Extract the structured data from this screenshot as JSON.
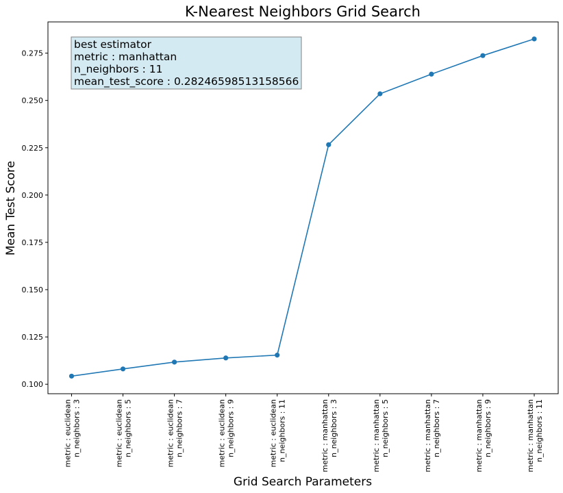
{
  "chart_data": {
    "type": "line",
    "title": "K-Nearest Neighbors Grid Search",
    "xlabel": "Grid Search Parameters",
    "ylabel": "Mean Test Score",
    "categories": [
      [
        "metric : euclidean",
        "n_neighbors : 3"
      ],
      [
        "metric : euclidean",
        "n_neighbors : 5"
      ],
      [
        "metric : euclidean",
        "n_neighbors : 7"
      ],
      [
        "metric : euclidean",
        "n_neighbors : 9"
      ],
      [
        "metric : euclidean",
        "n_neighbors : 11"
      ],
      [
        "metric : manhattan",
        "n_neighbors : 3"
      ],
      [
        "metric : manhattan",
        "n_neighbors : 5"
      ],
      [
        "metric : manhattan",
        "n_neighbors : 7"
      ],
      [
        "metric : manhattan",
        "n_neighbors : 9"
      ],
      [
        "metric : manhattan",
        "n_neighbors : 11"
      ]
    ],
    "values": [
      0.1043,
      0.1081,
      0.1117,
      0.1139,
      0.1154,
      0.2266,
      0.2535,
      0.2639,
      0.2737,
      0.2825
    ],
    "ylim": [
      0.095,
      0.2915
    ],
    "yticks": [
      "0.100",
      "0.125",
      "0.150",
      "0.175",
      "0.200",
      "0.225",
      "0.250",
      "0.275"
    ],
    "grid": false,
    "color": "#1f77b4",
    "annotation": {
      "lines": [
        "best estimator",
        "metric : manhattan",
        "n_neighbors : 11",
        "mean_test_score : 0.28246598513158566"
      ],
      "background": "#d4eaf2"
    }
  }
}
